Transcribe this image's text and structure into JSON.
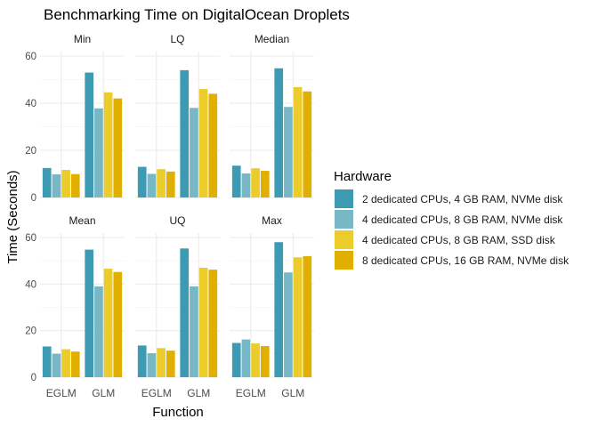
{
  "chart_data": {
    "type": "bar",
    "title": "Benchmarking Time on DigitalOcean Droplets",
    "xlabel": "Function",
    "ylabel": "Time (Seconds)",
    "categories": [
      "EGLM",
      "GLM"
    ],
    "ylim": [
      0,
      60
    ],
    "yticks": [
      0,
      20,
      40,
      60
    ],
    "grid": true,
    "legend_position": "right",
    "legend_title": "Hardware",
    "series": [
      {
        "name": "2 dedicated CPUs, 4 GB RAM, NVMe disk",
        "color": "#3C9AB2"
      },
      {
        "name": "4 dedicated CPUs, 8 GB RAM, NVMe disk",
        "color": "#78B7C5"
      },
      {
        "name": "4 dedicated CPUs, 8 GB RAM, SSD disk",
        "color": "#EBCC2A"
      },
      {
        "name": "8 dedicated CPUs, 16 GB RAM, NVMe disk",
        "color": "#E1AF00"
      }
    ],
    "panels": [
      {
        "label": "Min",
        "values": [
          [
            12.5,
            53
          ],
          [
            9.8,
            37.8
          ],
          [
            11.7,
            44.6
          ],
          [
            9.9,
            42
          ]
        ]
      },
      {
        "label": "LQ",
        "values": [
          [
            13,
            54
          ],
          [
            10,
            38
          ],
          [
            12,
            46
          ],
          [
            11,
            44
          ]
        ]
      },
      {
        "label": "Median",
        "values": [
          [
            13.5,
            54.8
          ],
          [
            10.2,
            38.4
          ],
          [
            12.4,
            46.8
          ],
          [
            11.3,
            45
          ]
        ]
      },
      {
        "label": "Mean",
        "values": [
          [
            13.2,
            54.8
          ],
          [
            10.1,
            39
          ],
          [
            12,
            46.6
          ],
          [
            11,
            45.2
          ]
        ]
      },
      {
        "label": "UQ",
        "values": [
          [
            13.6,
            55.3
          ],
          [
            10.3,
            39
          ],
          [
            12.5,
            47
          ],
          [
            11.4,
            46.2
          ]
        ]
      },
      {
        "label": "Max",
        "values": [
          [
            14.7,
            58
          ],
          [
            16.2,
            45
          ],
          [
            14.5,
            51.5
          ],
          [
            13.4,
            52
          ]
        ]
      }
    ]
  }
}
